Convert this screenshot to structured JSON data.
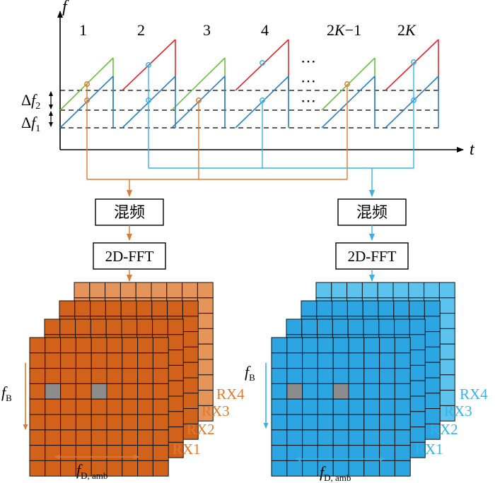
{
  "axes": {
    "y_label": "f",
    "x_label": "t"
  },
  "chirp_labels": [
    "1",
    "2",
    "3",
    "4",
    "2K−1",
    "2K"
  ],
  "chirp_label_parts": [
    {
      "k": "2",
      "v": "K",
      "s": "−1"
    },
    {
      "k": "2",
      "v": "K",
      "s": ""
    }
  ],
  "ellipsis": "⋯",
  "delta_labels": {
    "df2": {
      "d": "Δ",
      "f": "f",
      "sub": "2"
    },
    "df1": {
      "d": "Δ",
      "f": "f",
      "sub": "1"
    }
  },
  "branches": [
    {
      "mix_label": "混频",
      "fft_label": "2D-FFT",
      "color": "#e07a2e"
    },
    {
      "mix_label": "混频",
      "fft_label": "2D-FFT",
      "color": "#35b3e8"
    }
  ],
  "grids": [
    {
      "fill_front": "#d2621a",
      "fill_back": "#e6955a",
      "cell_highlight": "#8c8c8c",
      "label_color": "#e07a2e",
      "rx_labels": [
        "RX4",
        "RX3",
        "RX2",
        "RX1"
      ],
      "fb_label": {
        "f": "f",
        "sub": "B"
      },
      "fd_label": {
        "f": "f",
        "sub": "D, amb"
      }
    },
    {
      "fill_front": "#2ba6e2",
      "fill_back": "#5cc3ef",
      "cell_highlight": "#8c8c8c",
      "label_color": "#35b3e8",
      "rx_labels": [
        "RX4",
        "RX3",
        "RX2",
        "RX1"
      ],
      "fb_label": {
        "f": "f",
        "sub": "B"
      },
      "fd_label": {
        "f": "f",
        "sub": "D, amb"
      }
    }
  ],
  "colors": {
    "green": "#6cbf43",
    "blue": "#2a7fc4",
    "red": "#e0262c",
    "orange": "#e07a2e",
    "sky": "#35b3e8"
  }
}
